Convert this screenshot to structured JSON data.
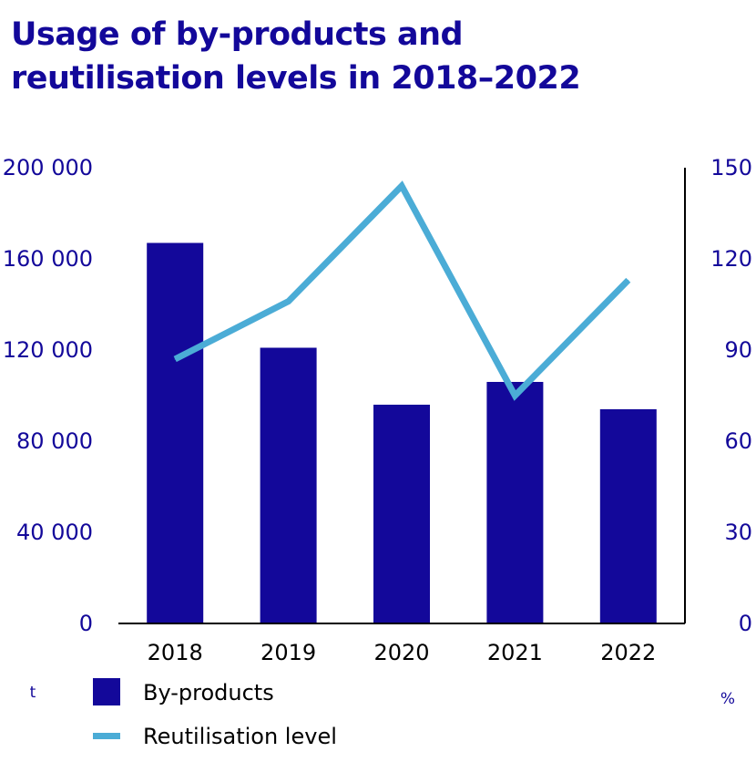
{
  "header": {
    "title_line1": "Usage of by-products and",
    "title_line2": "reutilisation levels in 2018–2022"
  },
  "colors": {
    "bar": "#13089a",
    "line": "#4bacd6",
    "title": "#13089a",
    "axis": "#13089a"
  },
  "chart_data": {
    "type": "bar",
    "title": "Usage of by-products and reutilisation levels in 2018–2022",
    "categories": [
      "2018",
      "2019",
      "2020",
      "2021",
      "2022"
    ],
    "series": [
      {
        "name": "By-products",
        "type": "bar",
        "axis": "left",
        "values": [
          167000,
          121000,
          96000,
          106000,
          94000
        ]
      },
      {
        "name": "Reutilisation level",
        "type": "line",
        "axis": "right",
        "values": [
          87,
          106,
          144,
          75,
          113
        ]
      }
    ],
    "y_left": {
      "unit": "t",
      "range": [
        0,
        200000
      ],
      "ticks": [
        0,
        40000,
        80000,
        120000,
        160000,
        200000
      ],
      "tick_labels": [
        "0",
        "40 000",
        "80 000",
        "120 000",
        "160 000",
        "200 000"
      ]
    },
    "y_right": {
      "unit": "%",
      "range": [
        0,
        150
      ],
      "ticks": [
        0,
        30,
        60,
        90,
        120,
        150
      ],
      "tick_labels": [
        "0",
        "30",
        "60",
        "90",
        "120",
        "150"
      ]
    },
    "grid": false,
    "legend": {
      "placement": "bottom-left",
      "entries": [
        "By-products",
        "Reutilisation level"
      ]
    }
  }
}
